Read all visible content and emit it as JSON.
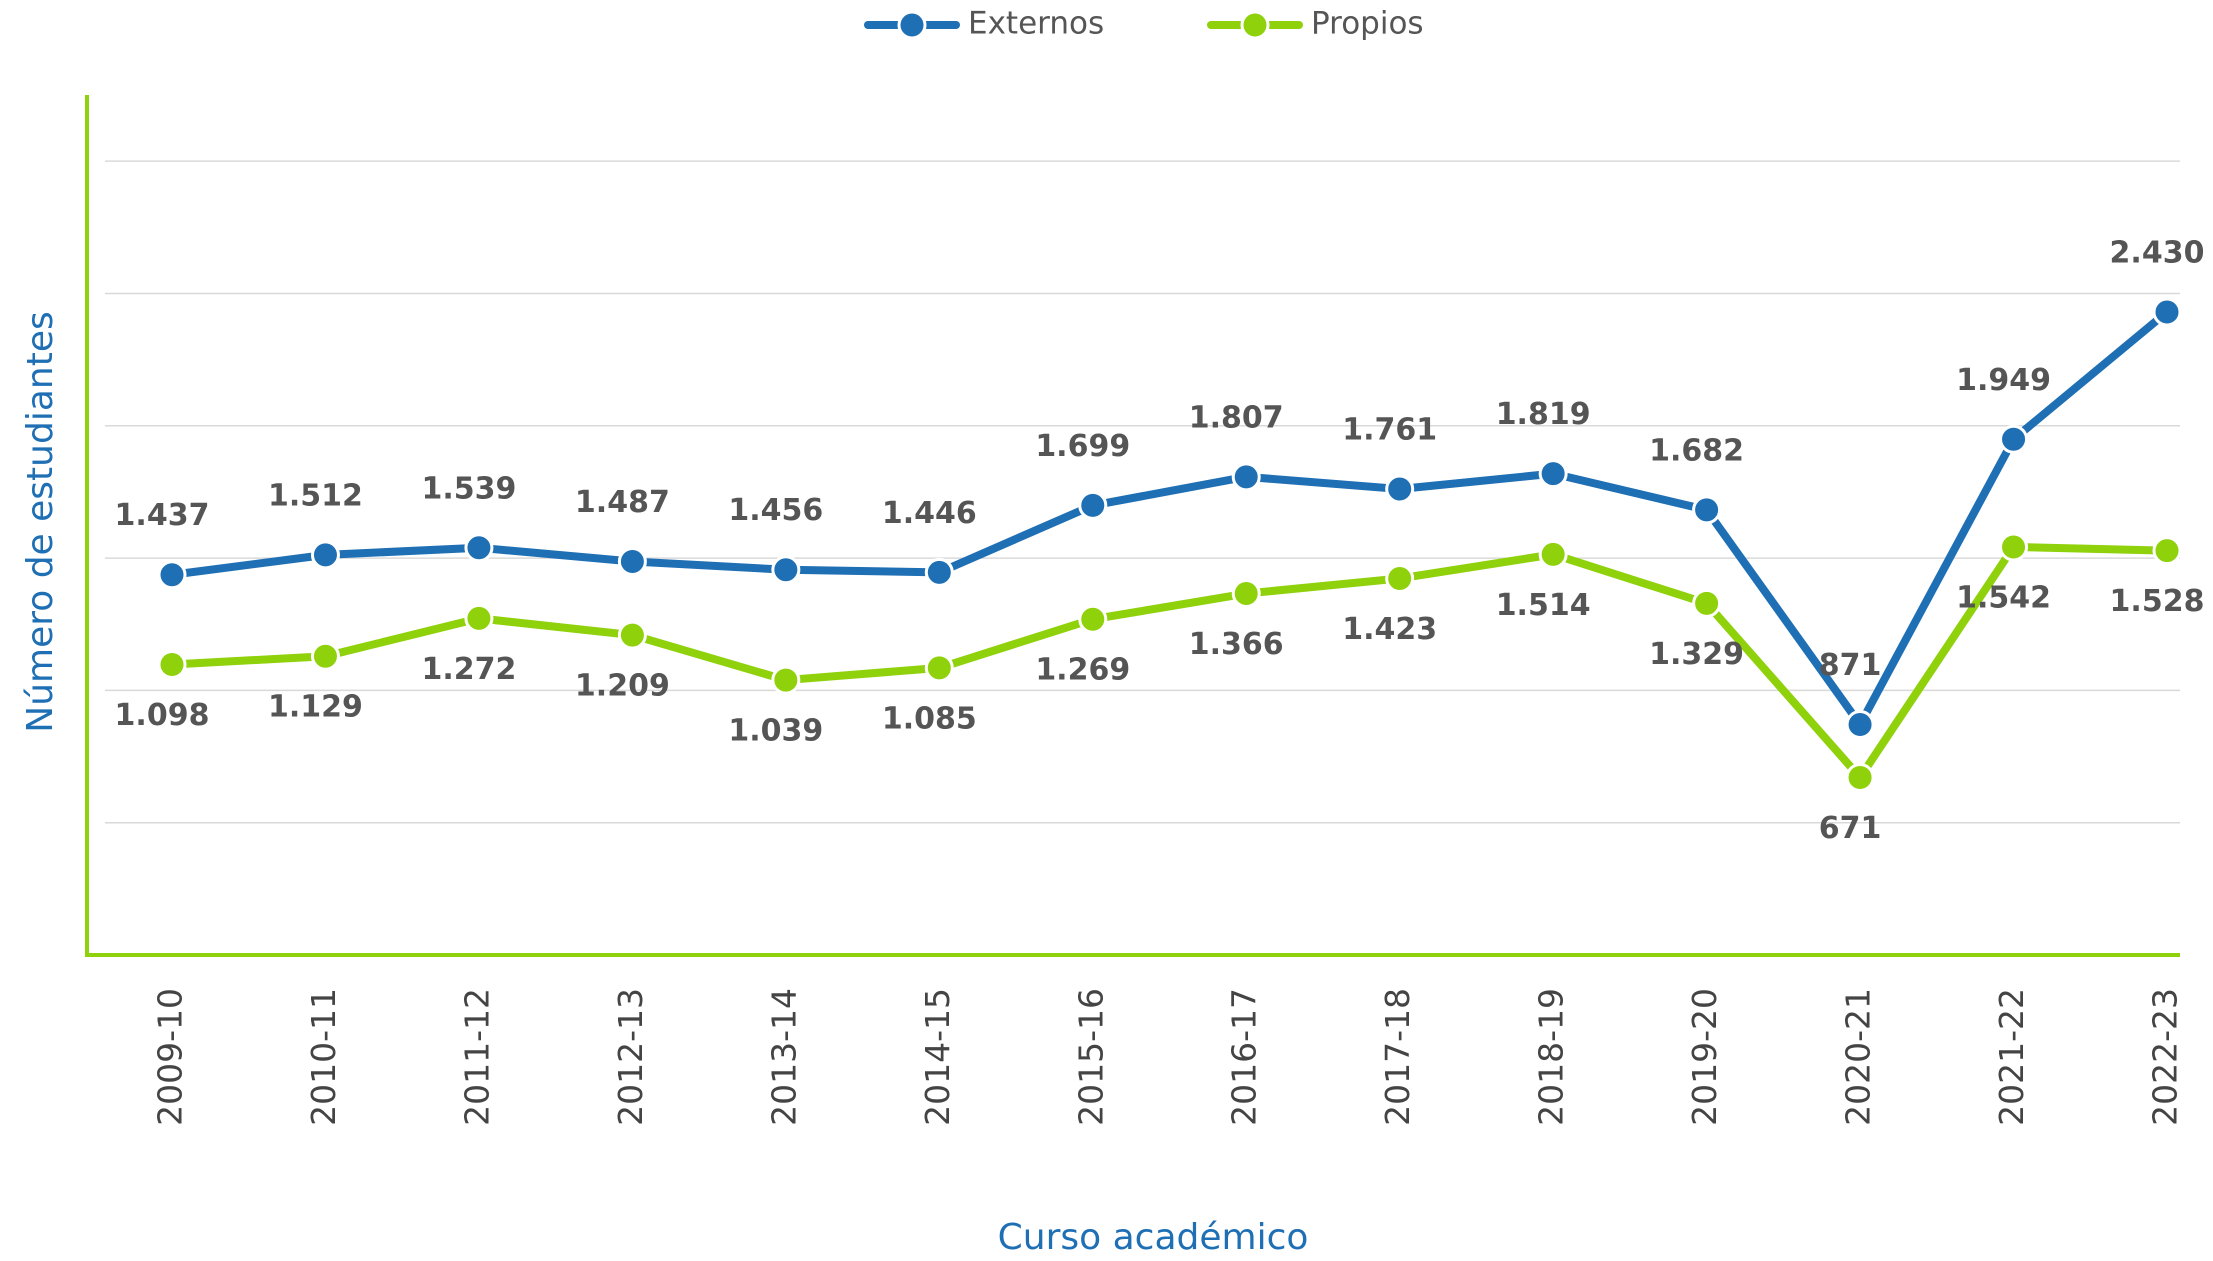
{
  "chart_data": {
    "type": "line",
    "x_label": "Curso académico",
    "y_label": "Número de estudiantes",
    "categories": [
      "2009-10",
      "2010-11",
      "2011-12",
      "2012-13",
      "2013-14",
      "2014-15",
      "2015-16",
      "2016-17",
      "2017-18",
      "2018-19",
      "2019-20",
      "2020-21",
      "2021-22",
      "2022-23"
    ],
    "series": [
      {
        "name": "Externos",
        "color": "#1f6fb5",
        "values": [
          1437,
          1512,
          1539,
          1487,
          1456,
          1446,
          1699,
          1807,
          1761,
          1819,
          1682,
          871,
          1949,
          2430
        ],
        "value_labels": [
          "1.437",
          "1.512",
          "1.539",
          "1.487",
          "1.456",
          "1.446",
          "1.699",
          "1.807",
          "1.761",
          "1.819",
          "1.682",
          "871",
          "1.949",
          "2.430"
        ]
      },
      {
        "name": "Propios",
        "color": "#8fd10a",
        "values": [
          1098,
          1129,
          1272,
          1209,
          1039,
          1085,
          1269,
          1366,
          1423,
          1514,
          1329,
          671,
          1542,
          1528
        ],
        "value_labels": [
          "1.098",
          "1.129",
          "1.272",
          "1.209",
          "1.039",
          "1.085",
          "1.269",
          "1.366",
          "1.423",
          "1.514",
          "1.329",
          "671",
          "1.542",
          "1.528"
        ]
      }
    ],
    "ylim": [
      0,
      3250
    ],
    "yticks": [
      500,
      1000,
      1500,
      2000,
      2500,
      3000
    ],
    "grid": true,
    "legend": "top"
  }
}
